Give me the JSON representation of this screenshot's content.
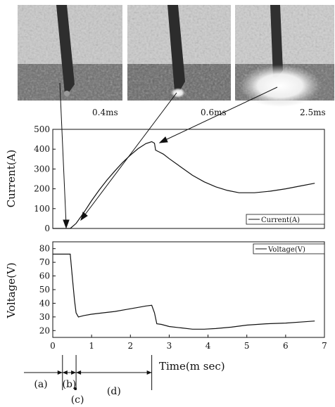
{
  "photos": [
    {
      "time_label": "0.4ms",
      "description": "electrode-tip-before-arc"
    },
    {
      "time_label": "0.6ms",
      "description": "small-arc-spot"
    },
    {
      "time_label": "2.5ms",
      "description": "bright-arc-flash"
    }
  ],
  "chart_data": [
    {
      "type": "line",
      "ylabel": "Current(A)",
      "ylim": [
        0,
        500
      ],
      "yticks": [
        0,
        100,
        200,
        300,
        400,
        500
      ],
      "xlim": [
        0,
        7
      ],
      "series": [
        {
          "name": "Current(A)",
          "x": [
            0.0,
            0.45,
            0.6,
            0.8,
            1.0,
            1.2,
            1.4,
            1.6,
            1.8,
            2.0,
            2.2,
            2.4,
            2.55,
            2.62,
            2.65,
            2.75,
            2.85,
            3.0,
            3.3,
            3.6,
            3.9,
            4.2,
            4.5,
            4.8,
            5.2,
            5.6,
            6.0,
            6.4,
            6.75
          ],
          "y": [
            0,
            0,
            25,
            80,
            140,
            195,
            245,
            290,
            333,
            370,
            403,
            428,
            438,
            430,
            395,
            385,
            375,
            352,
            310,
            268,
            235,
            210,
            192,
            180,
            180,
            188,
            200,
            215,
            228
          ]
        }
      ],
      "legend": "bottom-right",
      "grid": false
    },
    {
      "type": "line",
      "ylabel": "Voltage(V)",
      "xlabel": "Time(m sec)",
      "ylim": [
        15,
        85
      ],
      "yticks": [
        20,
        30,
        40,
        50,
        60,
        70,
        80
      ],
      "xlim": [
        0,
        7
      ],
      "xticks": [
        0,
        1,
        2,
        3,
        4,
        5,
        6,
        7
      ],
      "series": [
        {
          "name": "Voltage(V)",
          "x": [
            0.0,
            0.45,
            0.5,
            0.56,
            0.6,
            0.66,
            0.8,
            1.0,
            1.3,
            1.6,
            1.9,
            2.2,
            2.4,
            2.55,
            2.62,
            2.68,
            2.8,
            3.0,
            3.3,
            3.6,
            3.9,
            4.2,
            4.6,
            5.0,
            5.5,
            6.0,
            6.5,
            6.75
          ],
          "y": [
            76,
            76,
            60,
            42,
            33,
            30,
            31,
            32,
            33,
            34,
            35.5,
            37,
            38,
            38.5,
            33,
            25,
            24.5,
            23,
            22,
            21,
            21,
            21.5,
            22.5,
            24,
            25,
            25.5,
            26.5,
            27
          ]
        }
      ],
      "legend": "top-right",
      "grid": false
    }
  ],
  "phases": [
    {
      "label": "(a)",
      "start": 0.0,
      "end": 0.25
    },
    {
      "label": "(b)",
      "start": 0.25,
      "end": 0.6
    },
    {
      "label": "(c)",
      "start": 0.6,
      "end": 0.6
    },
    {
      "label": "(d)",
      "start": 0.6,
      "end": 2.55
    }
  ]
}
